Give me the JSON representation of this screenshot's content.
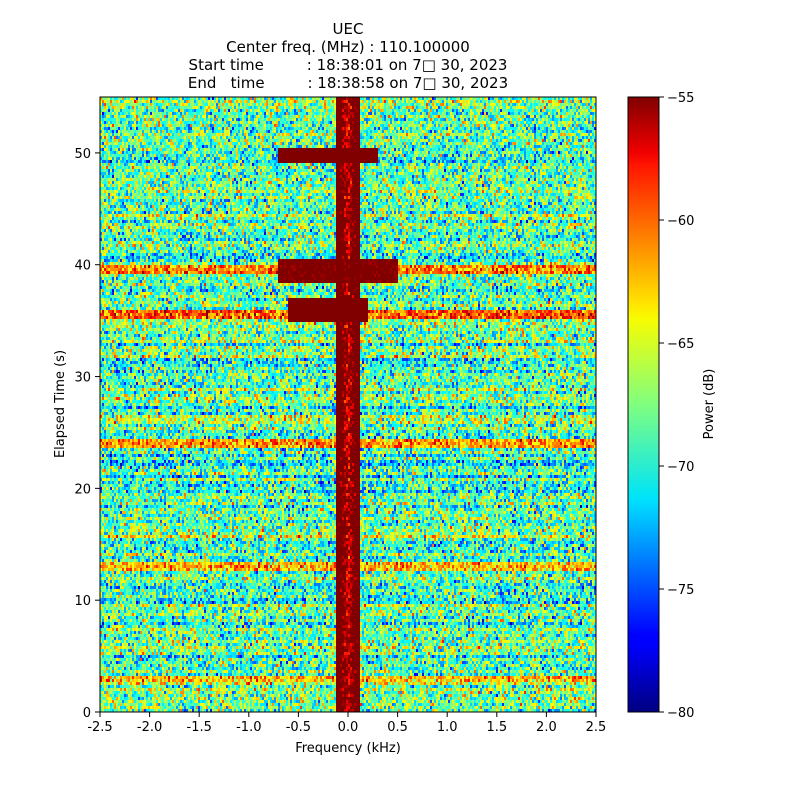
{
  "chart_data": {
    "type": "heatmap",
    "title": "UEC",
    "subtitle_lines": [
      "Center freq. (MHz) : 110.100000",
      "Start time         : 18:38:01 on 7□ 30, 2023",
      "End   time         : 18:38:58 on 7□ 30, 2023"
    ],
    "xlabel": "Frequency (kHz)",
    "ylabel": "Elapsed Time (s)",
    "xlim": [
      -2.5,
      2.5
    ],
    "ylim": [
      0,
      55
    ],
    "x_ticks": [
      -2.5,
      -2.0,
      -1.5,
      -1.0,
      -0.5,
      0.0,
      0.5,
      1.0,
      1.5,
      2.0,
      2.5
    ],
    "x_tick_labels": [
      "-2.5",
      "-2.0",
      "-1.5",
      "-1.0",
      "-0.5",
      "0.0",
      "0.5",
      "1.0",
      "1.5",
      "2.0",
      "2.5"
    ],
    "y_ticks": [
      0,
      10,
      20,
      30,
      40,
      50
    ],
    "y_tick_labels": [
      "0",
      "10",
      "20",
      "30",
      "40",
      "50"
    ],
    "colorbar": {
      "label": "Power (dB)",
      "range": [
        -80,
        -55
      ],
      "ticks": [
        -55,
        -60,
        -65,
        -70,
        -75,
        -80
      ],
      "tick_labels": [
        "−55",
        "−60",
        "−65",
        "−70",
        "−75",
        "−80"
      ],
      "colormap": "jet"
    },
    "grid": false,
    "noise_floor_db": -68.5,
    "signal_features": [
      {
        "kind": "center-line",
        "freq_khz": 0.0,
        "t_range": [
          0,
          55
        ],
        "power_db": -57
      },
      {
        "kind": "strong-burst",
        "t_range": [
          35,
          37
        ],
        "freq_range_khz": [
          -0.6,
          0.2
        ],
        "power_db": -55
      },
      {
        "kind": "strong-burst",
        "t_range": [
          38.5,
          40.5
        ],
        "freq_range_khz": [
          -0.7,
          0.5
        ],
        "power_db": -56
      },
      {
        "kind": "strong-burst",
        "t_range": [
          49,
          50.5
        ],
        "freq_range_khz": [
          -0.7,
          0.3
        ],
        "power_db": -55
      },
      {
        "kind": "wideband-line",
        "t": 35.5,
        "power_db": -60
      },
      {
        "kind": "wideband-line",
        "t": 39.5,
        "power_db": -61
      },
      {
        "kind": "wideband-line",
        "t": 24.0,
        "power_db": -62
      },
      {
        "kind": "wideband-line",
        "t": 13.0,
        "power_db": -63
      },
      {
        "kind": "wideband-line",
        "t": 3.0,
        "power_db": -63
      }
    ]
  }
}
